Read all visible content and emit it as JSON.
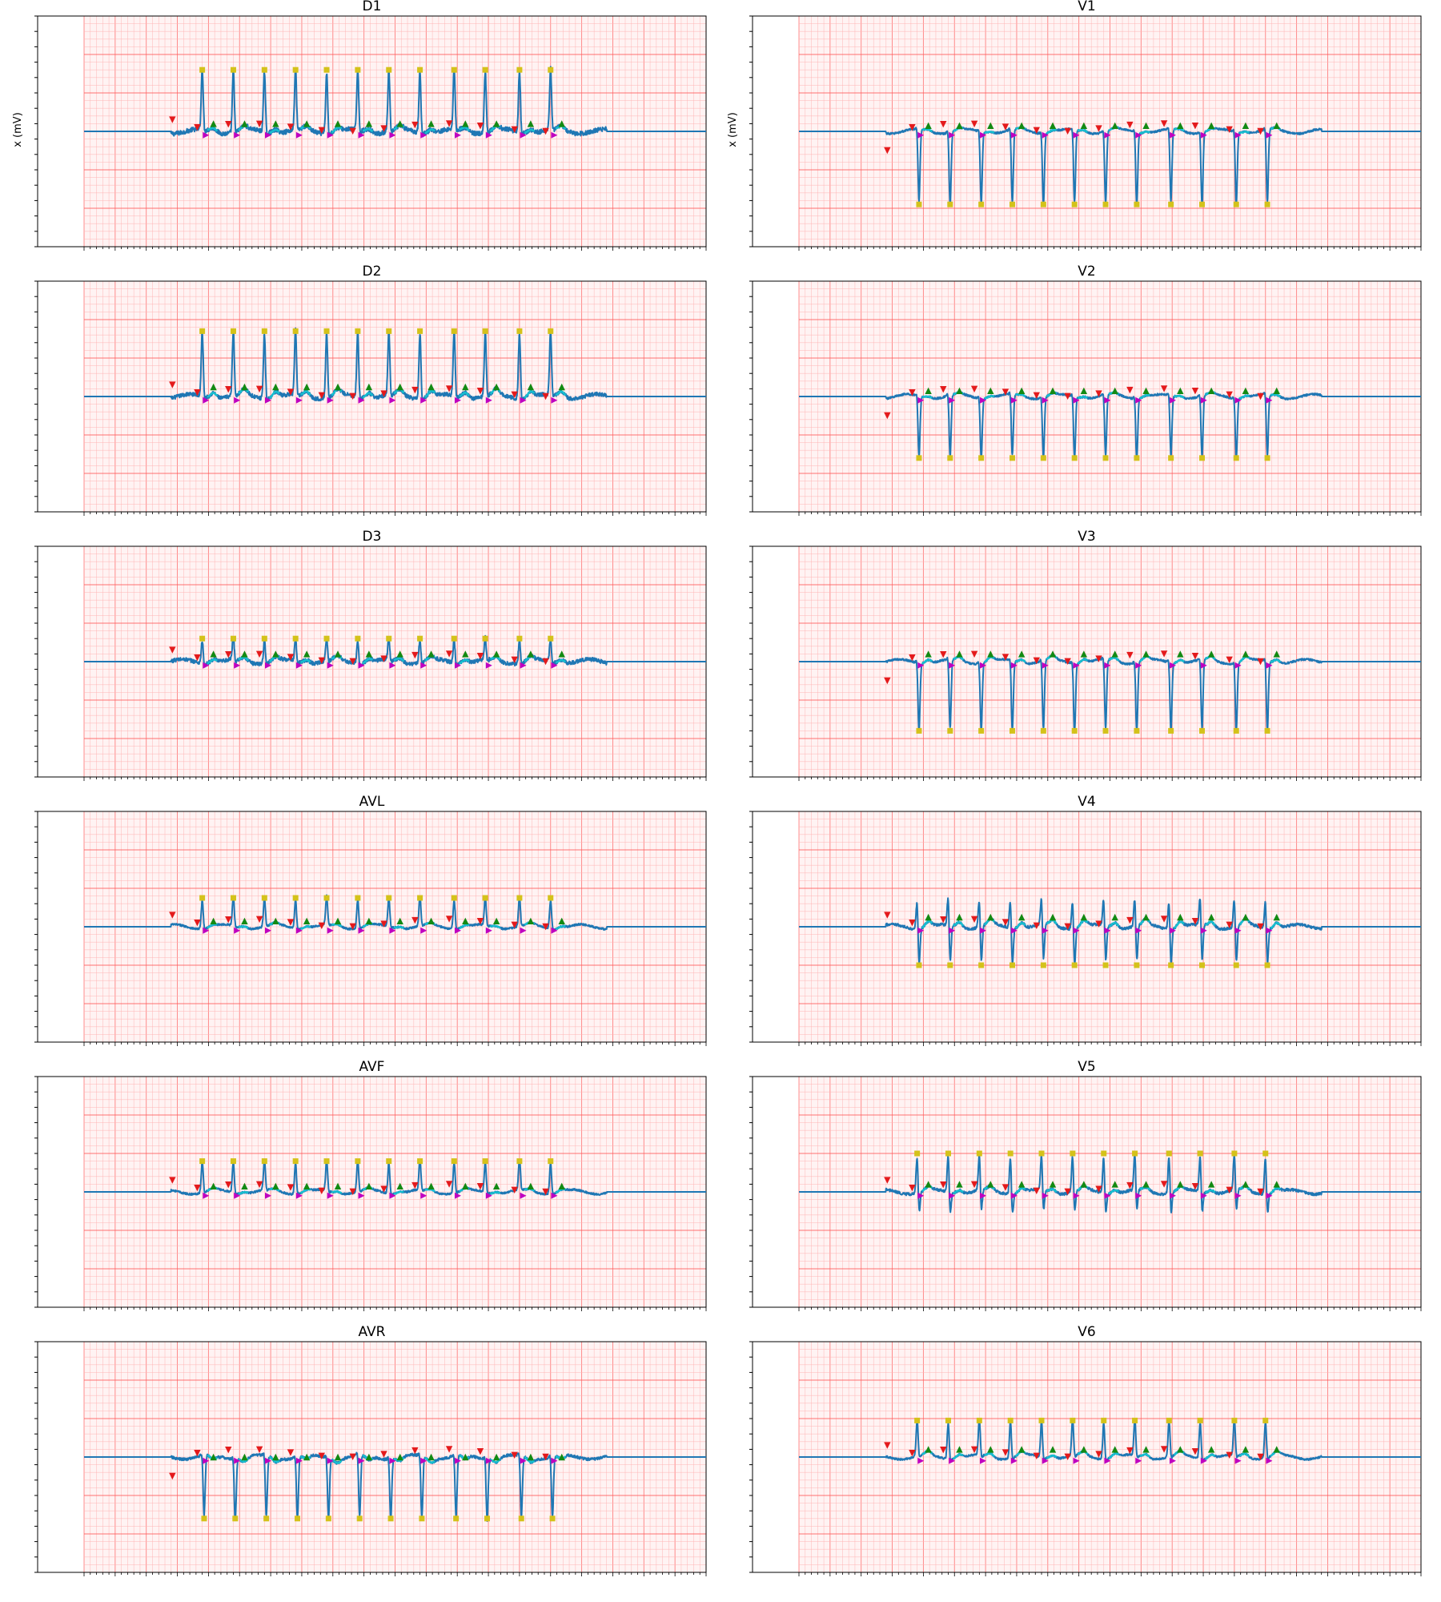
{
  "chart_data": {
    "type": "line",
    "ylabel": "x (mV)",
    "xlim": [
      0,
      1000
    ],
    "ylim": [
      -3,
      3
    ],
    "colors": {
      "signal": "#1f77b4",
      "segment": "#17becf",
      "grid_major": "#ff5a5a",
      "grid_minor": "#ffb3b3",
      "marker_onset": "#e41a1c",
      "marker_peak": "#d4c21a",
      "marker_wave": "#138a13",
      "marker_offset": "#c000c0"
    },
    "record": {
      "start": 140,
      "end": 840
    },
    "panels": [
      {
        "title": "D1",
        "show_ylabel": true,
        "column": 0,
        "r_amp": 1.6,
        "s_amp": 0.1,
        "t_amp": 0.1,
        "noise": 0.12,
        "beats": [
          190,
          240,
          290,
          340,
          390,
          440,
          490,
          540,
          595,
          645,
          700,
          750
        ]
      },
      {
        "title": "D2",
        "show_ylabel": false,
        "column": 0,
        "r_amp": 1.7,
        "s_amp": 0.1,
        "t_amp": 0.15,
        "noise": 0.1,
        "beats": [
          190,
          240,
          290,
          340,
          390,
          440,
          490,
          540,
          595,
          645,
          700,
          750
        ]
      },
      {
        "title": "D3",
        "show_ylabel": false,
        "column": 0,
        "r_amp": 0.6,
        "s_amp": 0.1,
        "t_amp": 0.1,
        "noise": 0.1,
        "beats": [
          190,
          240,
          290,
          340,
          390,
          440,
          490,
          540,
          595,
          645,
          700,
          750
        ]
      },
      {
        "title": "AVL",
        "show_ylabel": false,
        "column": 0,
        "r_amp": 0.75,
        "s_amp": 0.05,
        "t_amp": 0.05,
        "noise": 0.05,
        "beats": [
          190,
          240,
          290,
          340,
          390,
          440,
          490,
          540,
          595,
          645,
          700,
          750
        ]
      },
      {
        "title": "AVF",
        "show_ylabel": false,
        "column": 0,
        "r_amp": 0.8,
        "s_amp": 0.05,
        "t_amp": 0.05,
        "noise": 0.05,
        "beats": [
          190,
          240,
          290,
          340,
          390,
          440,
          490,
          540,
          595,
          645,
          700,
          750
        ]
      },
      {
        "title": "AVR",
        "show_ylabel": false,
        "column": 0,
        "r_amp": 0.1,
        "s_amp": 1.6,
        "t_amp": -0.1,
        "noise": 0.07,
        "beats": [
          190,
          240,
          290,
          340,
          390,
          440,
          490,
          540,
          595,
          645,
          700,
          750
        ]
      },
      {
        "title": "V1",
        "show_ylabel": true,
        "column": 1,
        "r_amp": 0.1,
        "s_amp": 1.9,
        "t_amp": 0.05,
        "noise": 0.05,
        "beats": [
          190,
          240,
          290,
          340,
          390,
          440,
          490,
          540,
          595,
          645,
          700,
          750
        ]
      },
      {
        "title": "V2",
        "show_ylabel": false,
        "column": 1,
        "r_amp": 0.1,
        "s_amp": 1.6,
        "t_amp": 0.05,
        "noise": 0.05,
        "beats": [
          190,
          240,
          290,
          340,
          390,
          440,
          490,
          540,
          595,
          645,
          700,
          750
        ]
      },
      {
        "title": "V3",
        "show_ylabel": false,
        "column": 1,
        "r_amp": 0.1,
        "s_amp": 1.8,
        "t_amp": 0.1,
        "noise": 0.05,
        "beats": [
          190,
          240,
          290,
          340,
          390,
          440,
          490,
          540,
          595,
          645,
          700,
          750
        ]
      },
      {
        "title": "V4",
        "show_ylabel": false,
        "column": 1,
        "r_amp": 0.8,
        "s_amp": 1.0,
        "t_amp": 0.15,
        "noise": 0.07,
        "beats": [
          190,
          240,
          290,
          340,
          390,
          440,
          490,
          540,
          595,
          645,
          700,
          750
        ]
      },
      {
        "title": "V5",
        "show_ylabel": false,
        "column": 1,
        "r_amp": 1.0,
        "s_amp": 0.6,
        "t_amp": 0.1,
        "noise": 0.07,
        "beats": [
          190,
          240,
          290,
          340,
          390,
          440,
          490,
          540,
          595,
          645,
          700,
          750
        ]
      },
      {
        "title": "V6",
        "show_ylabel": false,
        "column": 1,
        "r_amp": 0.95,
        "s_amp": 0.1,
        "t_amp": 0.1,
        "noise": 0.05,
        "beats": [
          190,
          240,
          290,
          340,
          390,
          440,
          490,
          540,
          595,
          645,
          700,
          750
        ]
      }
    ]
  }
}
